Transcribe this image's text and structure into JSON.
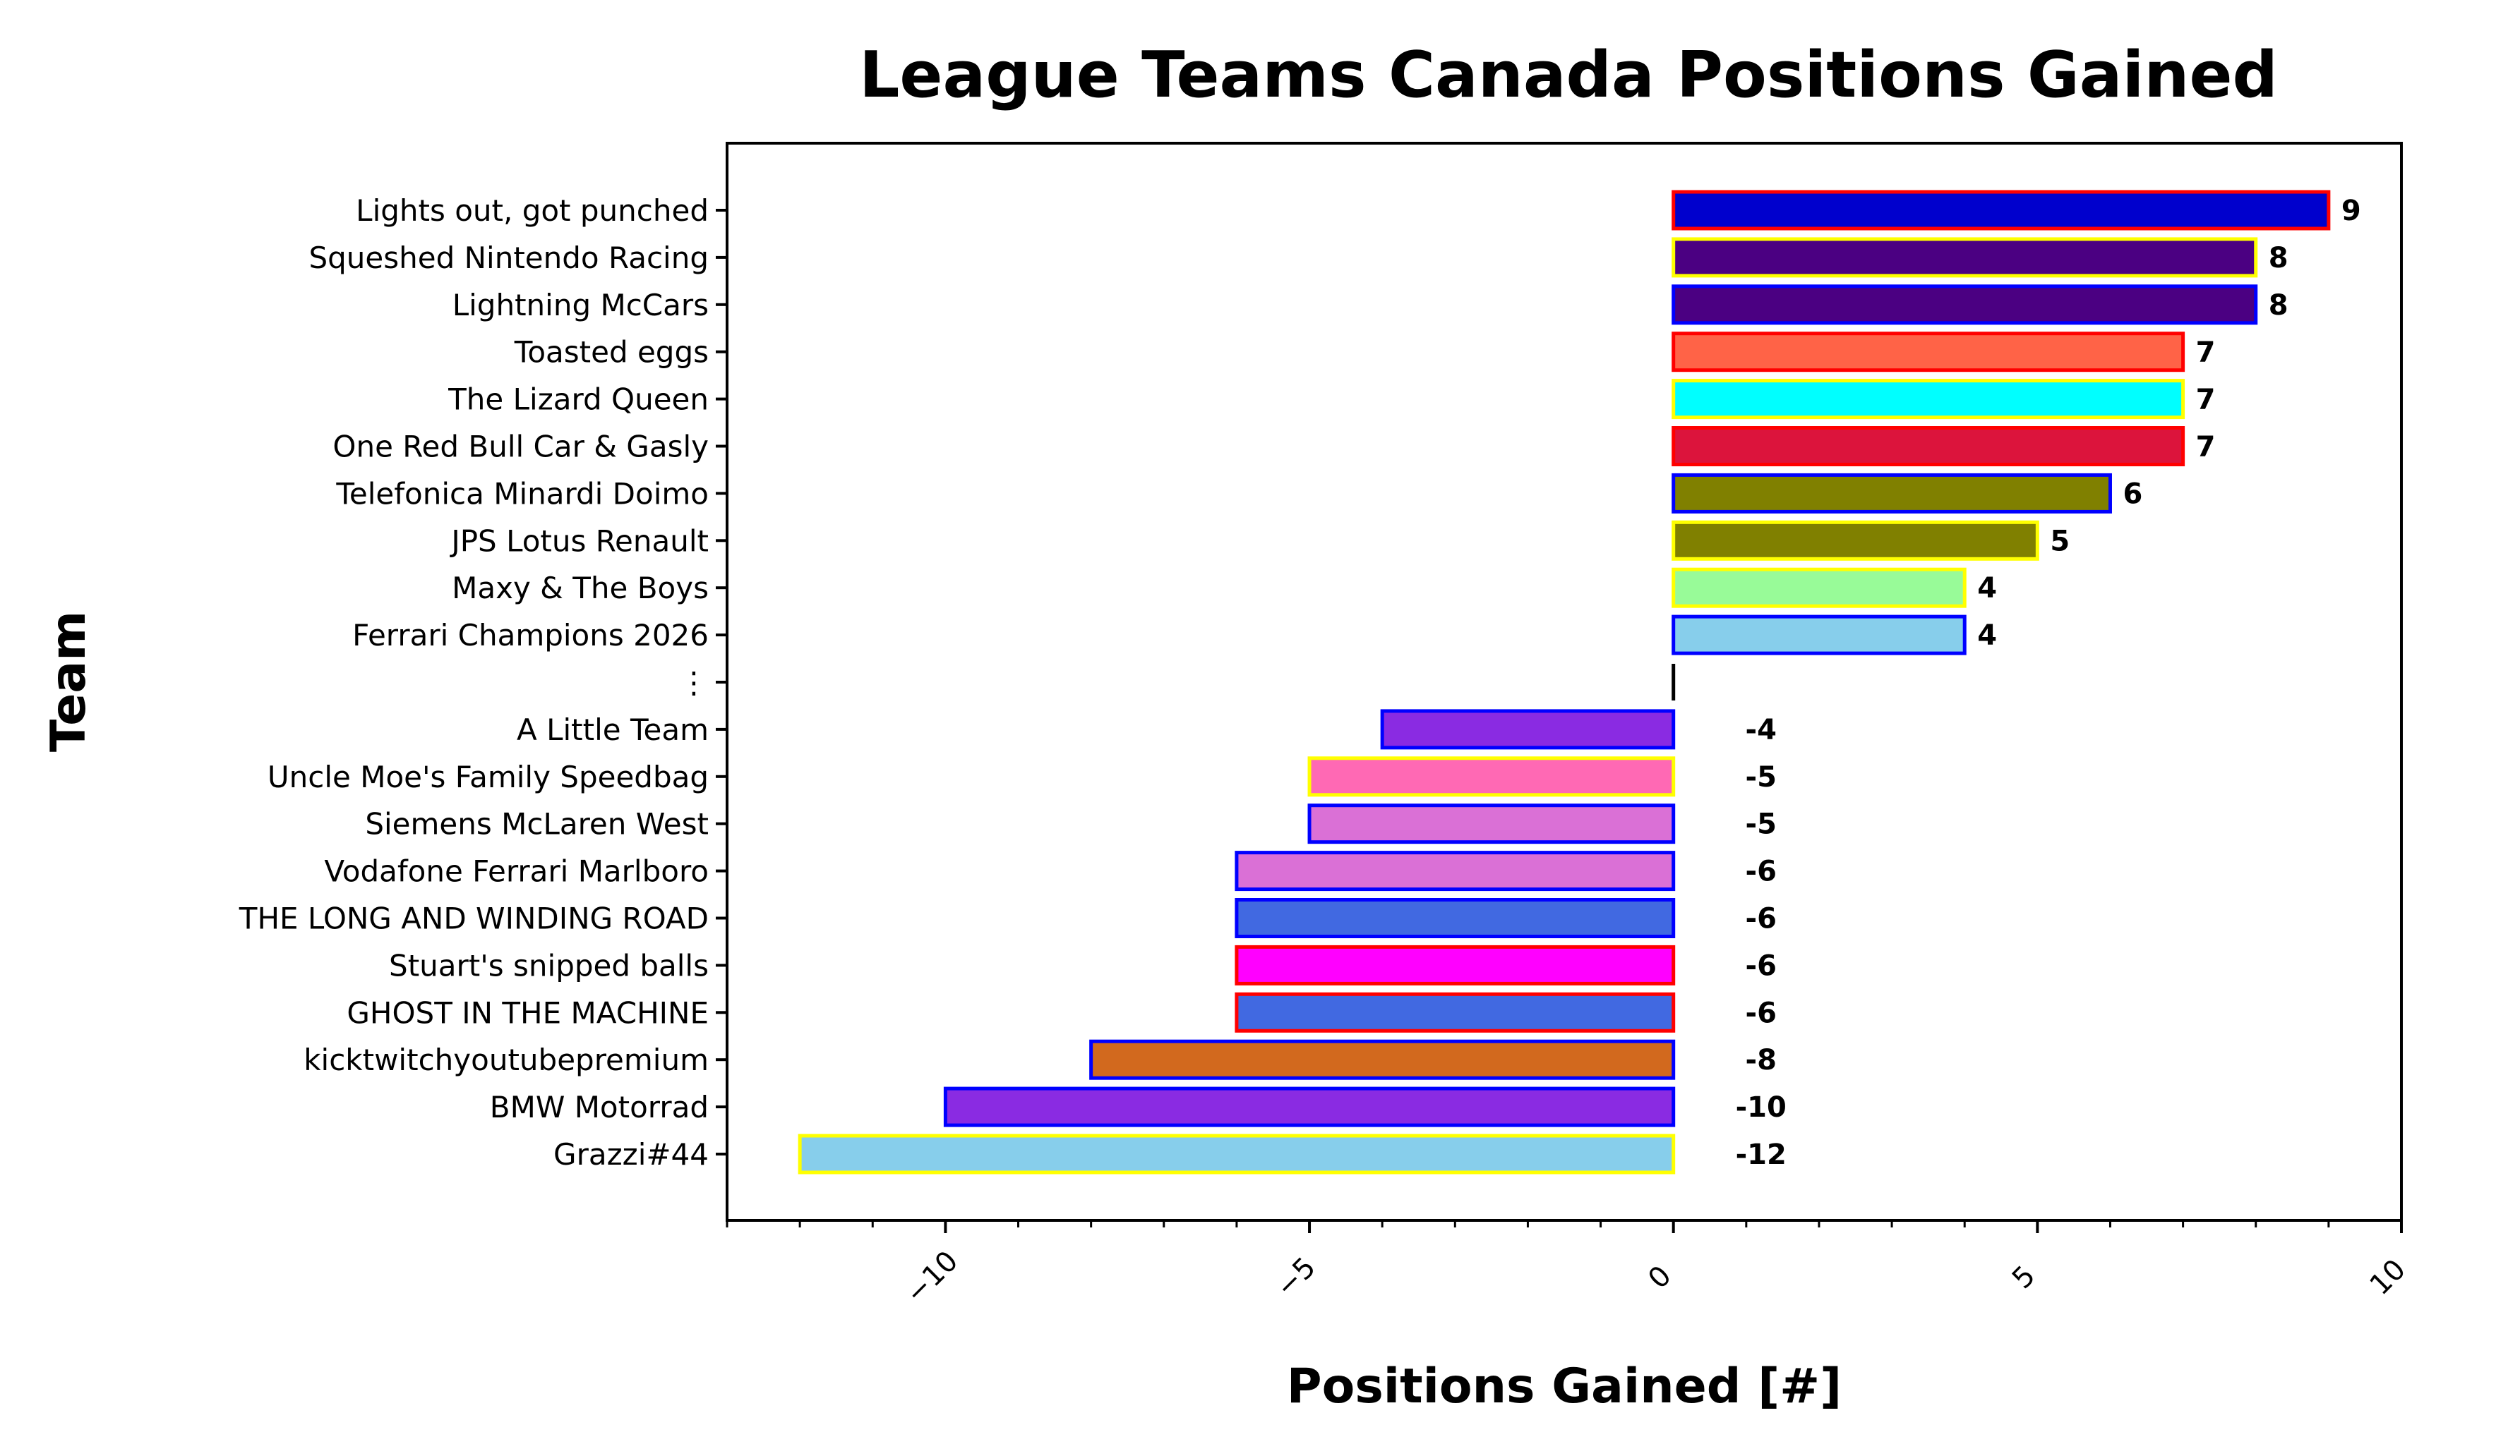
{
  "chart_data": {
    "type": "bar",
    "orientation": "horizontal",
    "title": "League Teams Canada Positions Gained",
    "xlabel": "Positions Gained [#]",
    "ylabel": "Team",
    "xlim": [
      -13,
      10
    ],
    "xticks": [
      -10,
      -5,
      0,
      5,
      10
    ],
    "xtick_labels": [
      "−10",
      "−5",
      "0",
      "5",
      "10"
    ],
    "grid": false,
    "legend": "none",
    "categories": [
      "Lights out, got punched",
      "Squeshed Nintendo Racing",
      "Lightning McCars",
      "Toasted eggs",
      "The Lizard Queen",
      "One Red Bull Car & Gasly",
      "Telefonica Minardi Doimo",
      "JPS Lotus Renault",
      "Maxy & The Boys",
      "Ferrari Champions 2026",
      "⋮",
      "A Little Team",
      "Uncle Moe's Family Speedbag",
      "Siemens McLaren West",
      "Vodafone Ferrari Marlboro",
      "THE LONG AND WINDING ROAD",
      "Stuart's snipped balls",
      "GHOST IN THE MACHINE",
      "kicktwitchyoutubepremium",
      "BMW Motorrad",
      "Grazzi#44"
    ],
    "values": [
      9,
      8,
      8,
      7,
      7,
      7,
      6,
      5,
      4,
      4,
      null,
      -4,
      -5,
      -5,
      -6,
      -6,
      -6,
      -6,
      -8,
      -10,
      -12
    ],
    "value_labels": [
      "9",
      "8",
      "8",
      "7",
      "7",
      "7",
      "6",
      "5",
      "4",
      "4",
      "",
      "-4",
      "-5",
      "-5",
      "-6",
      "-6",
      "-6",
      "-6",
      "-8",
      "-10",
      "-12"
    ],
    "fill_colors": [
      "#0000cd",
      "#4b0082",
      "#4b0082",
      "#ff6347",
      "#00ffff",
      "#dc143c",
      "#808000",
      "#808000",
      "#98fb98",
      "#87ceeb",
      null,
      "#8a2be2",
      "#ff69b4",
      "#da70d6",
      "#da70d6",
      "#4169e1",
      "#ff00ff",
      "#4169e1",
      "#d2691e",
      "#8a2be2",
      "#87ceeb"
    ],
    "edge_colors": [
      "#ff0000",
      "#ffff00",
      "#0000ff",
      "#ff0000",
      "#ffff00",
      "#ff0000",
      "#0000ff",
      "#ffff00",
      "#ffff00",
      "#0000ff",
      null,
      "#0000ff",
      "#ffff00",
      "#0000ff",
      "#0000ff",
      "#0000ff",
      "#ff0000",
      "#ff0000",
      "#0000ff",
      "#0000ff",
      "#ffff00"
    ]
  }
}
